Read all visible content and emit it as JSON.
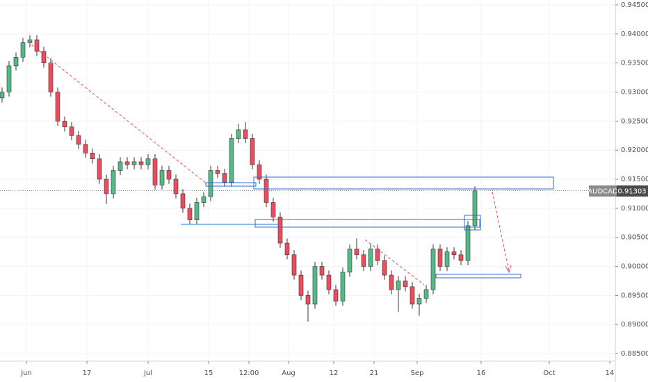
{
  "chart_data": {
    "type": "candlestick",
    "symbol": "AUDCAD",
    "up_color": "#53b987",
    "down_color": "#eb4d5c",
    "grid": true,
    "open": [
      0.929,
      0.93,
      0.9345,
      0.936,
      0.9385,
      0.939,
      0.937,
      0.935,
      0.93,
      0.925,
      0.924,
      0.9225,
      0.921,
      0.9195,
      0.9185,
      0.915,
      0.9125,
      0.9165,
      0.918,
      0.9175,
      0.918,
      0.9175,
      0.9185,
      0.914,
      0.9165,
      0.915,
      0.9125,
      0.91,
      0.908,
      0.911,
      0.912,
      0.9165,
      0.916,
      0.9145,
      0.922,
      0.9235,
      0.922,
      0.9175,
      0.915,
      0.911,
      0.9085,
      0.904,
      0.902,
      0.8985,
      0.895,
      0.8935,
      0.9,
      0.8985,
      0.896,
      0.894,
      0.899,
      0.903,
      0.902,
      0.9,
      0.903,
      0.901,
      0.8985,
      0.896,
      0.8975,
      0.8965,
      0.8935,
      0.8945,
      0.896,
      0.903,
      0.9,
      0.9025,
      0.902,
      0.901,
      0.907
    ],
    "high": [
      0.9308,
      0.9353,
      0.9368,
      0.9393,
      0.9398,
      0.9398,
      0.9378,
      0.9358,
      0.9308,
      0.9258,
      0.9248,
      0.9233,
      0.9218,
      0.9203,
      0.9193,
      0.9158,
      0.9173,
      0.9188,
      0.9188,
      0.9188,
      0.9188,
      0.9193,
      0.9193,
      0.9173,
      0.9173,
      0.9158,
      0.9133,
      0.9108,
      0.9118,
      0.9128,
      0.9173,
      0.9173,
      0.9168,
      0.9228,
      0.9245,
      0.9248,
      0.9228,
      0.9183,
      0.9158,
      0.9118,
      0.9093,
      0.9048,
      0.9028,
      0.8993,
      0.8958,
      0.9008,
      0.9008,
      0.8993,
      0.8968,
      0.8998,
      0.9038,
      0.9048,
      0.9028,
      0.9038,
      0.9038,
      0.9018,
      0.8993,
      0.8983,
      0.8983,
      0.8973,
      0.8953,
      0.8968,
      0.9038,
      0.9038,
      0.9033,
      0.9033,
      0.9028,
      0.9078,
      0.9138
    ],
    "low": [
      0.9282,
      0.9292,
      0.9337,
      0.9352,
      0.9377,
      0.9362,
      0.9342,
      0.9292,
      0.9242,
      0.9232,
      0.9217,
      0.9202,
      0.9187,
      0.9177,
      0.9142,
      0.9107,
      0.9117,
      0.9157,
      0.9167,
      0.9167,
      0.9167,
      0.9167,
      0.9132,
      0.9132,
      0.9142,
      0.9117,
      0.9092,
      0.9072,
      0.9072,
      0.9102,
      0.9112,
      0.9152,
      0.9137,
      0.9137,
      0.9212,
      0.9212,
      0.9167,
      0.9142,
      0.9102,
      0.9077,
      0.9032,
      0.9012,
      0.8977,
      0.8942,
      0.8905,
      0.8927,
      0.8977,
      0.8952,
      0.8932,
      0.8932,
      0.8982,
      0.9012,
      0.8992,
      0.8992,
      0.9002,
      0.8977,
      0.8952,
      0.8922,
      0.8957,
      0.8927,
      0.8915,
      0.8937,
      0.8952,
      0.8992,
      0.8992,
      0.9012,
      0.9002,
      0.9002,
      0.9062
    ],
    "close": [
      0.93,
      0.9345,
      0.936,
      0.9385,
      0.939,
      0.937,
      0.935,
      0.93,
      0.925,
      0.924,
      0.9225,
      0.921,
      0.9195,
      0.9185,
      0.915,
      0.9125,
      0.9165,
      0.918,
      0.9175,
      0.918,
      0.9175,
      0.9185,
      0.914,
      0.9165,
      0.915,
      0.9125,
      0.91,
      0.908,
      0.911,
      0.912,
      0.9165,
      0.916,
      0.9145,
      0.922,
      0.9235,
      0.922,
      0.9175,
      0.915,
      0.911,
      0.9085,
      0.904,
      0.902,
      0.8985,
      0.895,
      0.8935,
      0.9,
      0.8985,
      0.896,
      0.894,
      0.899,
      0.903,
      0.902,
      0.9,
      0.903,
      0.901,
      0.8985,
      0.896,
      0.8975,
      0.8965,
      0.8935,
      0.8945,
      0.896,
      0.903,
      0.9,
      0.9025,
      0.902,
      0.901,
      0.907,
      0.913
    ],
    "xlim": [
      -0.3,
      88.2
    ],
    "xticks": [
      {
        "value": 3.5,
        "label": "Jun"
      },
      {
        "value": 12.2,
        "label": "17"
      },
      {
        "value": 21,
        "label": "Jul"
      },
      {
        "value": 29.7,
        "label": "15"
      },
      {
        "value": 35.5,
        "label": "12:00"
      },
      {
        "value": 41.2,
        "label": "Aug"
      },
      {
        "value": 47.7,
        "label": "12"
      },
      {
        "value": 53.5,
        "label": "21"
      },
      {
        "value": 59.7,
        "label": "Sep"
      },
      {
        "value": 68.9,
        "label": "16"
      },
      {
        "value": 78.7,
        "label": "Oct"
      },
      {
        "value": 87.4,
        "label": "14"
      }
    ],
    "ylim": [
      0.88369,
      0.94584
    ],
    "yticks": [
      {
        "value": 0.885,
        "label": "0.88500"
      },
      {
        "value": 0.89,
        "label": "0.89000"
      },
      {
        "value": 0.895,
        "label": "0.89500"
      },
      {
        "value": 0.9,
        "label": "0.90000"
      },
      {
        "value": 0.905,
        "label": "0.90500"
      },
      {
        "value": 0.91,
        "label": "0.91000"
      },
      {
        "value": 0.915,
        "label": "0.91500"
      },
      {
        "value": 0.92,
        "label": "0.92000"
      },
      {
        "value": 0.925,
        "label": "0.92500"
      },
      {
        "value": 0.93,
        "label": "0.93000"
      },
      {
        "value": 0.935,
        "label": "0.93500"
      },
      {
        "value": 0.94,
        "label": "0.94000"
      },
      {
        "value": 0.945,
        "label": "0.94500"
      }
    ],
    "last_price": {
      "value": 0.91303,
      "label": "0.91303"
    }
  }
}
